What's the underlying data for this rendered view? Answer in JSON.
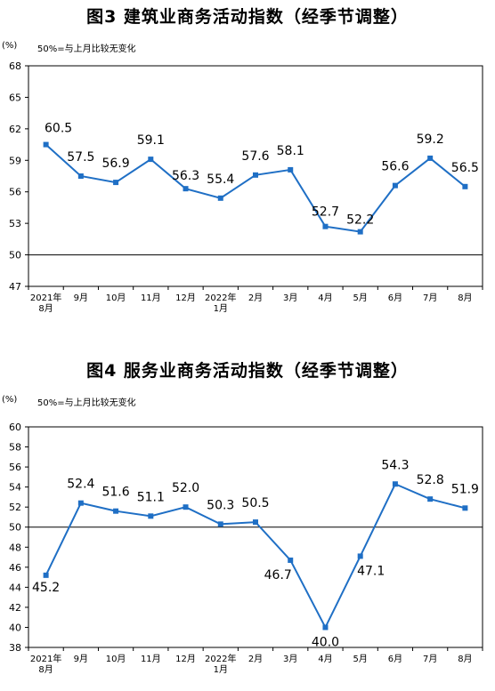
{
  "chart_data": [
    {
      "type": "line",
      "title": "图3  建筑业商务活动指数（经季节调整）",
      "unit_label": "(%)",
      "note": "50%=与上月比较无变化",
      "categories": [
        "2021年\n8月",
        "9月",
        "10月",
        "11月",
        "12月",
        "2022年\n1月",
        "2月",
        "3月",
        "4月",
        "5月",
        "6月",
        "7月",
        "8月"
      ],
      "values": [
        60.5,
        57.5,
        56.9,
        59.1,
        56.3,
        55.4,
        57.6,
        58.1,
        52.7,
        52.2,
        56.6,
        59.2,
        56.5
      ],
      "value_labels": [
        "60.5",
        "57.5",
        "56.9",
        "59.1",
        "56.3",
        "55.4",
        "57.6",
        "58.1",
        "52.7",
        "52.2",
        "56.6",
        "59.2",
        "56.5"
      ],
      "ylim": [
        47,
        68
      ],
      "yticks": [
        47,
        50,
        53,
        56,
        59,
        62,
        65,
        68
      ],
      "reference_line": 50,
      "color": "#1f6fc5",
      "grid": false
    },
    {
      "type": "line",
      "title": "图4  服务业商务活动指数（经季节调整）",
      "unit_label": "(%)",
      "note": "50%=与上月比较无变化",
      "categories": [
        "2021年\n8月",
        "9月",
        "10月",
        "11月",
        "12月",
        "2022年\n1月",
        "2月",
        "3月",
        "4月",
        "5月",
        "6月",
        "7月",
        "8月"
      ],
      "values": [
        45.2,
        52.4,
        51.6,
        51.1,
        52.0,
        50.3,
        50.5,
        46.7,
        40.0,
        47.1,
        54.3,
        52.8,
        51.9
      ],
      "value_labels": [
        "45.2",
        "52.4",
        "51.6",
        "51.1",
        "52.0",
        "50.3",
        "50.5",
        "46.7",
        "40.0",
        "47.1",
        "54.3",
        "52.8",
        "51.9"
      ],
      "ylim": [
        38,
        60
      ],
      "yticks": [
        38,
        40,
        42,
        44,
        46,
        48,
        50,
        52,
        54,
        56,
        58,
        60
      ],
      "reference_line": 50,
      "color": "#1f6fc5",
      "grid": false
    }
  ]
}
